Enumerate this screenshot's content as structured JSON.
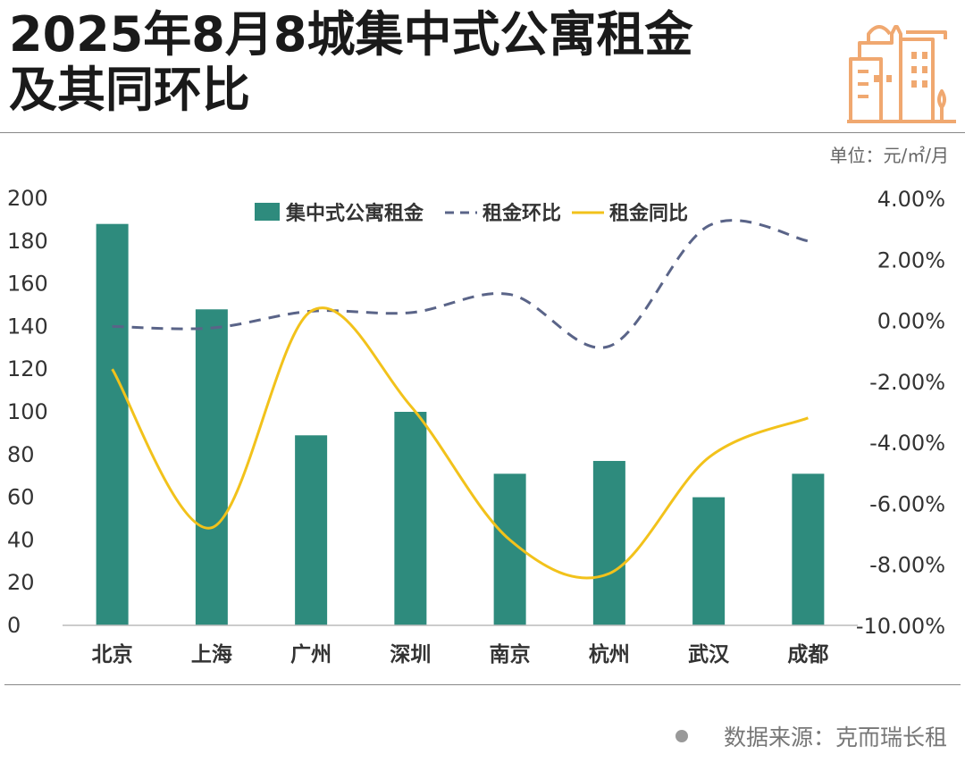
{
  "title_lines": [
    "2025年8月8城集中式公寓租金",
    "及其同环比"
  ],
  "unit": "单位：元/㎡/月",
  "source": "数据来源：克而瑞长租",
  "icon": "city-buildings-icon",
  "colors": {
    "bar": "#2e8b7d",
    "mom": "#5a6488",
    "yoy": "#f2c21b",
    "logo": "#f0a870"
  },
  "chart_data": {
    "type": "bar",
    "categories": [
      "北京",
      "上海",
      "广州",
      "深圳",
      "南京",
      "杭州",
      "武汉",
      "成都"
    ],
    "series": [
      {
        "name": "集中式公寓租金",
        "type": "bar",
        "axis": "left",
        "values": [
          188,
          148,
          89,
          100,
          71,
          77,
          60,
          71
        ]
      },
      {
        "name": "租金环比",
        "type": "line",
        "style": "dashed",
        "axis": "right",
        "values": [
          -0.2,
          -0.25,
          0.3,
          0.25,
          0.85,
          -0.85,
          3.1,
          2.6
        ]
      },
      {
        "name": "租金同比",
        "type": "line",
        "style": "solid",
        "axis": "right",
        "values": [
          -1.6,
          -6.8,
          0.3,
          -2.8,
          -7.2,
          -8.3,
          -4.5,
          -3.2
        ]
      }
    ],
    "ylim_left": [
      0,
      200
    ],
    "yticks_left": [
      "0",
      "20",
      "40",
      "60",
      "80",
      "100",
      "120",
      "140",
      "160",
      "180",
      "200"
    ],
    "ylim_right": [
      -10,
      4
    ],
    "yticks_right": [
      "-10.00%",
      "-8.00%",
      "-6.00%",
      "-4.00%",
      "-2.00%",
      "0.00%",
      "2.00%",
      "4.00%"
    ],
    "legend_position": "top-center",
    "grid": false
  }
}
